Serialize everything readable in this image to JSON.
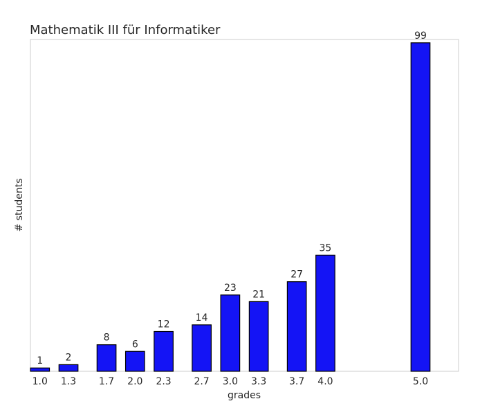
{
  "chart_data": {
    "type": "bar",
    "title": "Mathematik III für Informatiker",
    "xlabel": "grades",
    "ylabel": "# students",
    "categories": [
      "1.0",
      "1.3",
      "1.7",
      "2.0",
      "2.3",
      "2.7",
      "3.0",
      "3.3",
      "3.7",
      "4.0",
      "5.0"
    ],
    "x": [
      1.0,
      1.3,
      1.7,
      2.0,
      2.3,
      2.7,
      3.0,
      3.3,
      3.7,
      4.0,
      5.0
    ],
    "values": [
      1,
      2,
      8,
      6,
      12,
      14,
      23,
      21,
      27,
      35,
      99
    ],
    "data_labels": [
      "1",
      "2",
      "8",
      "6",
      "12",
      "14",
      "23",
      "21",
      "27",
      "35",
      "99"
    ],
    "xlim": [
      0.9,
      5.4
    ],
    "ylim": [
      0,
      100
    ],
    "bar_width": 0.2,
    "grid": false,
    "legend": "none",
    "bar_color": "#1414f5",
    "bar_edge_color": "#000000",
    "frame_color": "#cccccc"
  }
}
